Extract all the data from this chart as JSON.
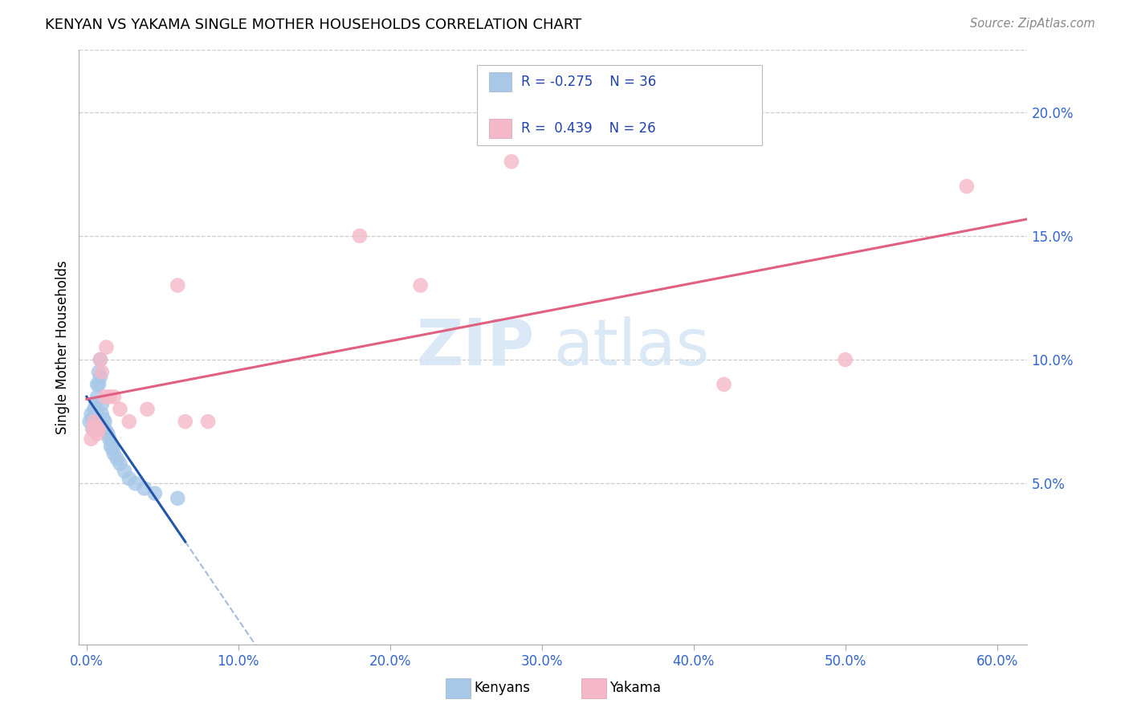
{
  "title": "KENYAN VS YAKAMA SINGLE MOTHER HOUSEHOLDS CORRELATION CHART",
  "source": "Source: ZipAtlas.com",
  "ylabel": "Single Mother Households",
  "xlim": [
    -0.005,
    0.62
  ],
  "ylim": [
    -0.015,
    0.225
  ],
  "ytick_vals": [
    0.05,
    0.1,
    0.15,
    0.2
  ],
  "ytick_labels": [
    "5.0%",
    "10.0%",
    "15.0%",
    "20.0%"
  ],
  "xtick_vals": [
    0.0,
    0.1,
    0.2,
    0.3,
    0.4,
    0.5,
    0.6
  ],
  "xtick_labels": [
    "0.0%",
    "10.0%",
    "20.0%",
    "30.0%",
    "40.0%",
    "50.0%",
    "60.0%"
  ],
  "kenyan_color": "#a8c8e8",
  "yakama_color": "#f5b8c8",
  "kenyan_line_color": "#2255aa",
  "yakama_line_color": "#e06080",
  "watermark_zip": "ZIP",
  "watermark_atlas": "atlas",
  "kenyan_x": [
    0.002,
    0.003,
    0.004,
    0.004,
    0.005,
    0.005,
    0.005,
    0.006,
    0.006,
    0.007,
    0.007,
    0.008,
    0.008,
    0.009,
    0.009,
    0.01,
    0.01,
    0.01,
    0.011,
    0.011,
    0.012,
    0.012,
    0.013,
    0.014,
    0.015,
    0.016,
    0.017,
    0.018,
    0.02,
    0.022,
    0.025,
    0.028,
    0.032,
    0.038,
    0.045,
    0.06
  ],
  "kenyan_y": [
    0.075,
    0.078,
    0.076,
    0.072,
    0.08,
    0.077,
    0.073,
    0.082,
    0.078,
    0.09,
    0.085,
    0.095,
    0.09,
    0.1,
    0.093,
    0.082,
    0.078,
    0.074,
    0.076,
    0.073,
    0.075,
    0.072,
    0.071,
    0.07,
    0.068,
    0.065,
    0.064,
    0.062,
    0.06,
    0.058,
    0.055,
    0.052,
    0.05,
    0.048,
    0.046,
    0.044
  ],
  "yakama_x": [
    0.003,
    0.004,
    0.005,
    0.006,
    0.007,
    0.008,
    0.009,
    0.01,
    0.012,
    0.013,
    0.015,
    0.018,
    0.022,
    0.028,
    0.04,
    0.06,
    0.065,
    0.08,
    0.18,
    0.22,
    0.28,
    0.42,
    0.5,
    0.58
  ],
  "yakama_y": [
    0.068,
    0.072,
    0.075,
    0.073,
    0.07,
    0.072,
    0.1,
    0.095,
    0.085,
    0.105,
    0.085,
    0.085,
    0.08,
    0.075,
    0.08,
    0.13,
    0.075,
    0.075,
    0.15,
    0.13,
    0.18,
    0.09,
    0.1,
    0.17
  ]
}
